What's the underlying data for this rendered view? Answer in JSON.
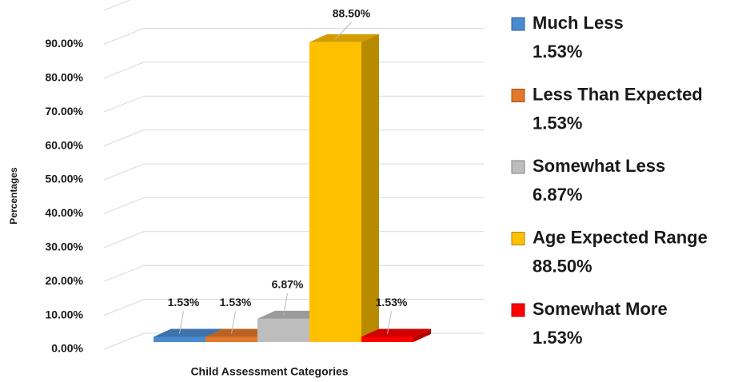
{
  "chart_data": {
    "type": "bar",
    "x_label": "Child Assessment Categories",
    "y_label": "Percentages",
    "categories": [
      null
    ],
    "series": [
      {
        "name": "Much Less",
        "color": "#4a8bd0",
        "values": [
          1.53
        ],
        "value_labels": [
          "1.53%"
        ]
      },
      {
        "name": "Less Than Expected",
        "color": "#e3782c",
        "values": [
          1.53
        ],
        "value_labels": [
          "1.53%"
        ]
      },
      {
        "name": "Somewhat Less",
        "color": "#bdbdbd",
        "values": [
          6.87
        ],
        "value_labels": [
          "6.87%"
        ]
      },
      {
        "name": "Age Expected Range",
        "color": "#ffc000",
        "values": [
          88.5
        ],
        "value_labels": [
          "88.50%"
        ]
      },
      {
        "name": "Somewhat More",
        "color": "#ff0000",
        "values": [
          1.53
        ],
        "value_labels": [
          "1.53%"
        ]
      }
    ],
    "ylim": [
      0,
      100
    ],
    "yticks": [
      {
        "value": 0,
        "label": "0.00%"
      },
      {
        "value": 10,
        "label": "10.00%"
      },
      {
        "value": 20,
        "label": "20.00%"
      },
      {
        "value": 30,
        "label": "30.00%"
      },
      {
        "value": 40,
        "label": "40.00%"
      },
      {
        "value": 50,
        "label": "50.00%"
      },
      {
        "value": 60,
        "label": "60.00%"
      },
      {
        "value": 70,
        "label": "70.00%"
      },
      {
        "value": 80,
        "label": "80.00%"
      },
      {
        "value": 90,
        "label": "90.00%"
      }
    ],
    "grid": true,
    "legend": "right"
  }
}
